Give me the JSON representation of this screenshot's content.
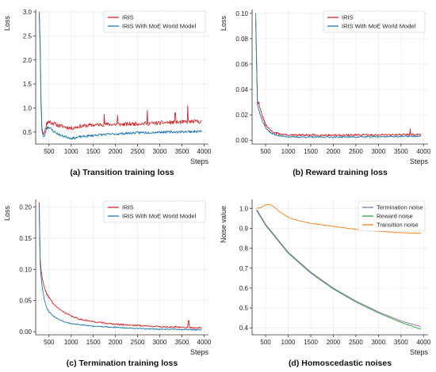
{
  "chart_data": [
    {
      "type": "line",
      "caption": "(a) Transition training loss",
      "ylabel": "Loss",
      "xlabel": "Steps",
      "xlim": [
        200,
        4100
      ],
      "ylim": [
        0.25,
        3.05
      ],
      "xticks": [
        500,
        1000,
        1500,
        2000,
        2500,
        3000,
        3500,
        4000
      ],
      "yticks": [
        0.5,
        1.0,
        1.5,
        2.0,
        2.5,
        3.0
      ],
      "ytick_labels": [
        "0.5",
        "1.0",
        "1.5",
        "2.0",
        "2.5",
        "3.0"
      ],
      "grid": true,
      "legend_position": "top-right",
      "series": [
        {
          "name": "IRIS",
          "color": "#d62728",
          "noise": 0.04,
          "seed": 11,
          "x": [
            280,
            300,
            320,
            340,
            360,
            380,
            400,
            450,
            500,
            600,
            700,
            800,
            900,
            1000,
            1100,
            1200,
            1400,
            1600,
            1800,
            2000,
            2200,
            2400,
            2600,
            2800,
            3000,
            3200,
            3400,
            3600,
            3800,
            3950
          ],
          "y": [
            3.0,
            2.4,
            1.2,
            0.6,
            0.5,
            0.45,
            0.5,
            0.68,
            0.72,
            0.68,
            0.64,
            0.62,
            0.6,
            0.58,
            0.6,
            0.62,
            0.64,
            0.65,
            0.66,
            0.66,
            0.66,
            0.67,
            0.68,
            0.68,
            0.69,
            0.7,
            0.7,
            0.71,
            0.72,
            0.72
          ],
          "spikes": [
            [
              1750,
              0.87
            ],
            [
              2050,
              0.85
            ],
            [
              2720,
              0.95
            ],
            [
              3350,
              0.9
            ],
            [
              3630,
              1.05
            ]
          ]
        },
        {
          "name": "IRIS With MoE World Model",
          "color": "#1f77b4",
          "noise": 0.025,
          "seed": 23,
          "x": [
            280,
            300,
            320,
            340,
            360,
            380,
            400,
            450,
            500,
            600,
            700,
            800,
            900,
            1000,
            1100,
            1200,
            1400,
            1600,
            1800,
            2000,
            2200,
            2400,
            2600,
            2800,
            3000,
            3200,
            3400,
            3600,
            3800,
            3950
          ],
          "y": [
            2.95,
            2.3,
            1.1,
            0.55,
            0.45,
            0.4,
            0.42,
            0.58,
            0.6,
            0.52,
            0.46,
            0.42,
            0.4,
            0.37,
            0.38,
            0.4,
            0.42,
            0.44,
            0.45,
            0.46,
            0.47,
            0.48,
            0.49,
            0.49,
            0.5,
            0.5,
            0.5,
            0.51,
            0.51,
            0.52
          ],
          "spikes": []
        }
      ]
    },
    {
      "type": "line",
      "caption": "(b) Reward training loss",
      "ylabel": "Loss",
      "xlabel": "Steps",
      "xlim": [
        200,
        4100
      ],
      "ylim": [
        -0.003,
        0.103
      ],
      "xticks": [
        500,
        1000,
        1500,
        2000,
        2500,
        3000,
        3500,
        4000
      ],
      "yticks": [
        0.0,
        0.02,
        0.04,
        0.06,
        0.08,
        0.1
      ],
      "ytick_labels": [
        "0.00",
        "0.02",
        "0.04",
        "0.06",
        "0.08",
        "0.10"
      ],
      "grid": true,
      "legend_position": "top-right",
      "series": [
        {
          "name": "IRIS",
          "color": "#d62728",
          "noise": 0.0008,
          "seed": 31,
          "x": [
            280,
            300,
            320,
            350,
            380,
            420,
            500,
            600,
            700,
            800,
            900,
            1000,
            1200,
            1500,
            2000,
            2500,
            3000,
            3500,
            3950
          ],
          "y": [
            0.094,
            0.06,
            0.03,
            0.028,
            0.025,
            0.02,
            0.012,
            0.008,
            0.006,
            0.005,
            0.0045,
            0.004,
            0.004,
            0.004,
            0.004,
            0.004,
            0.0042,
            0.0045,
            0.0045
          ],
          "spikes": [
            [
              350,
              0.03
            ],
            [
              3700,
              0.009
            ]
          ]
        },
        {
          "name": "IRIS With MoE World Model",
          "color": "#1f77b4",
          "noise": 0.0005,
          "seed": 37,
          "x": [
            280,
            300,
            320,
            350,
            380,
            420,
            500,
            600,
            700,
            800,
            900,
            1000,
            1200,
            1500,
            2000,
            2500,
            3000,
            3500,
            3950
          ],
          "y": [
            0.1,
            0.06,
            0.028,
            0.024,
            0.02,
            0.016,
            0.01,
            0.006,
            0.0045,
            0.0035,
            0.003,
            0.0028,
            0.0025,
            0.0025,
            0.0025,
            0.0026,
            0.0028,
            0.003,
            0.0032
          ],
          "spikes": []
        }
      ]
    },
    {
      "type": "line",
      "caption": "(c) Termination training loss",
      "ylabel": "Loss",
      "xlabel": "Steps",
      "xlim": [
        200,
        4100
      ],
      "ylim": [
        -0.005,
        0.212
      ],
      "xticks": [
        500,
        1000,
        1500,
        2000,
        2500,
        3000,
        3500,
        4000
      ],
      "yticks": [
        0.0,
        0.05,
        0.1,
        0.15,
        0.2
      ],
      "ytick_labels": [
        "0.00",
        "0.05",
        "0.10",
        "0.15",
        "0.20"
      ],
      "grid": true,
      "legend_position": "top-right",
      "series": [
        {
          "name": "IRIS",
          "color": "#d62728",
          "noise": 0.0012,
          "seed": 41,
          "x": [
            280,
            300,
            320,
            350,
            400,
            450,
            500,
            600,
            700,
            800,
            1000,
            1200,
            1500,
            2000,
            2500,
            3000,
            3500,
            3950
          ],
          "y": [
            0.208,
            0.12,
            0.1,
            0.085,
            0.07,
            0.06,
            0.055,
            0.045,
            0.038,
            0.033,
            0.025,
            0.02,
            0.016,
            0.012,
            0.01,
            0.008,
            0.007,
            0.006
          ],
          "spikes": [
            [
              3650,
              0.018
            ]
          ]
        },
        {
          "name": "IRIS With MoE World Model",
          "color": "#1f77b4",
          "noise": 0.0008,
          "seed": 47,
          "x": [
            280,
            300,
            320,
            350,
            400,
            450,
            500,
            600,
            700,
            800,
            1000,
            1200,
            1500,
            2000,
            2500,
            3000,
            3500,
            3950
          ],
          "y": [
            0.2,
            0.11,
            0.09,
            0.07,
            0.05,
            0.038,
            0.032,
            0.025,
            0.02,
            0.017,
            0.013,
            0.011,
            0.009,
            0.007,
            0.005,
            0.004,
            0.0035,
            0.003
          ],
          "spikes": []
        }
      ]
    },
    {
      "type": "line",
      "caption": "(d) Homoscedastic noises",
      "ylabel": "Noise value",
      "xlabel": "Steps",
      "xlim": [
        200,
        4100
      ],
      "ylim": [
        0.365,
        1.045
      ],
      "xticks": [
        500,
        1000,
        1500,
        2000,
        2500,
        3000,
        3500,
        4000
      ],
      "yticks": [
        0.4,
        0.5,
        0.6,
        0.7,
        0.8,
        0.9,
        1.0
      ],
      "ytick_labels": [
        "0.4",
        "0.5",
        "0.6",
        "0.7",
        "0.8",
        "0.9",
        "1.0"
      ],
      "grid": true,
      "legend_position": "top-right",
      "series": [
        {
          "name": "Termination noise",
          "color": "#9467bd",
          "noise": 0.0,
          "seed": 51,
          "x": [
            300,
            500,
            1000,
            1500,
            2000,
            2500,
            3000,
            3500,
            3950
          ],
          "y": [
            0.995,
            0.92,
            0.78,
            0.68,
            0.6,
            0.535,
            0.48,
            0.435,
            0.405
          ],
          "spikes": []
        },
        {
          "name": "Reward noise",
          "color": "#2ca02c",
          "noise": 0.0,
          "seed": 53,
          "x": [
            300,
            500,
            1000,
            1500,
            2000,
            2500,
            3000,
            3500,
            3950
          ],
          "y": [
            0.99,
            0.915,
            0.775,
            0.675,
            0.595,
            0.53,
            0.475,
            0.428,
            0.392
          ],
          "spikes": []
        },
        {
          "name": "Transition noise",
          "color": "#ff7f0e",
          "noise": 0.0,
          "seed": 57,
          "x": [
            300,
            400,
            500,
            600,
            700,
            800,
            1000,
            1200,
            1500,
            2000,
            2500,
            3000,
            3500,
            3950
          ],
          "y": [
            1.0,
            1.005,
            1.018,
            1.02,
            1.005,
            0.985,
            0.955,
            0.94,
            0.925,
            0.91,
            0.895,
            0.885,
            0.878,
            0.875
          ],
          "spikes": []
        }
      ]
    }
  ]
}
